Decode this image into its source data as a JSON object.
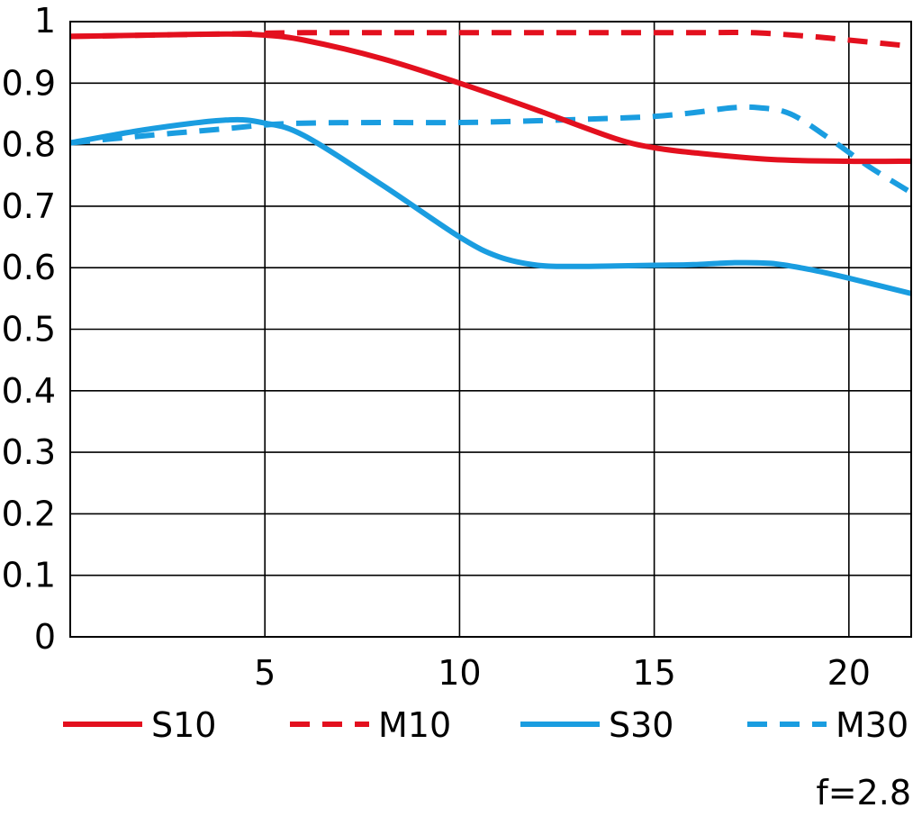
{
  "chart_data": {
    "type": "line",
    "title": "",
    "xlabel": "",
    "ylabel": "",
    "xlim": [
      0,
      21.6
    ],
    "ylim": [
      0,
      1
    ],
    "x_ticks": [
      5,
      10,
      15,
      20
    ],
    "x_tick_labels": [
      "5",
      "10",
      "15",
      "20"
    ],
    "y_ticks": [
      0,
      0.1,
      0.2,
      0.3,
      0.4,
      0.5,
      0.6,
      0.7,
      0.8,
      0.9,
      1
    ],
    "y_tick_labels": [
      "0",
      "0.1",
      "0.2",
      "0.3",
      "0.4",
      "0.5",
      "0.6",
      "0.7",
      "0.8",
      "0.9",
      "1"
    ],
    "grid": true,
    "legend_position": "bottom",
    "note": "f=2.8",
    "series": [
      {
        "name": "S10",
        "color": "#e3101e",
        "dash": false,
        "x": [
          0,
          2,
          4,
          5,
          6,
          8,
          10,
          12,
          14,
          15,
          16,
          18,
          20,
          21.6
        ],
        "y": [
          0.976,
          0.978,
          0.98,
          0.978,
          0.97,
          0.94,
          0.9,
          0.856,
          0.81,
          0.795,
          0.787,
          0.776,
          0.773,
          0.773
        ]
      },
      {
        "name": "M10",
        "color": "#e3101e",
        "dash": true,
        "x": [
          0,
          2,
          4,
          6,
          8,
          10,
          12,
          14,
          16,
          17.5,
          19,
          20,
          21.6
        ],
        "y": [
          0.976,
          0.978,
          0.98,
          0.982,
          0.982,
          0.982,
          0.982,
          0.982,
          0.982,
          0.982,
          0.976,
          0.97,
          0.96
        ]
      },
      {
        "name": "S30",
        "color": "#1a9de0",
        "dash": false,
        "x": [
          0,
          2,
          4,
          5,
          6,
          8,
          10,
          11,
          12,
          13,
          14,
          15,
          16,
          17,
          18,
          19,
          20,
          21.6
        ],
        "y": [
          0.803,
          0.825,
          0.84,
          0.835,
          0.815,
          0.735,
          0.65,
          0.618,
          0.604,
          0.602,
          0.603,
          0.604,
          0.605,
          0.608,
          0.607,
          0.597,
          0.583,
          0.558
        ]
      },
      {
        "name": "M30",
        "color": "#1a9de0",
        "dash": true,
        "x": [
          0,
          2,
          4,
          5,
          6,
          8,
          10,
          12,
          14,
          15,
          16,
          17,
          17.7,
          18.5,
          19.5,
          20.5,
          21.6
        ],
        "y": [
          0.803,
          0.815,
          0.826,
          0.832,
          0.835,
          0.836,
          0.836,
          0.839,
          0.843,
          0.846,
          0.852,
          0.86,
          0.86,
          0.85,
          0.81,
          0.765,
          0.722
        ]
      }
    ]
  }
}
